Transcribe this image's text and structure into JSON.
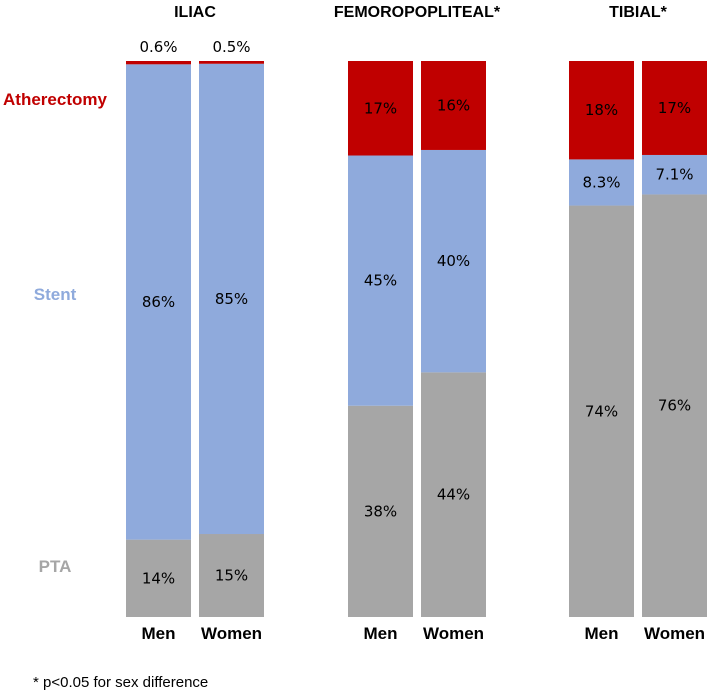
{
  "chart_data": {
    "type": "bar",
    "stacked": true,
    "normalized_percent": true,
    "legend": [
      {
        "name": "Atherectomy",
        "color": "#c00000"
      },
      {
        "name": "Stent",
        "color": "#8faadc"
      },
      {
        "name": "PTA",
        "color": "#a6a6a6"
      }
    ],
    "panels": [
      {
        "title": "ILIAC",
        "categories": [
          "Men",
          "Women"
        ],
        "series": [
          {
            "name": "PTA",
            "values": [
              14,
              15
            ],
            "labels": [
              "14%",
              "15%"
            ]
          },
          {
            "name": "Stent",
            "values": [
              86,
              85
            ],
            "labels": [
              "86%",
              "85%"
            ]
          },
          {
            "name": "Atherectomy",
            "values": [
              0.6,
              0.5
            ],
            "labels": [
              "0.6%",
              "0.5%"
            ]
          }
        ]
      },
      {
        "title": "FEMOROPOPLITEAL*",
        "categories": [
          "Men",
          "Women"
        ],
        "series": [
          {
            "name": "PTA",
            "values": [
              38,
              44
            ],
            "labels": [
              "38%",
              "44%"
            ]
          },
          {
            "name": "Stent",
            "values": [
              45,
              40
            ],
            "labels": [
              "45%",
              "40%"
            ]
          },
          {
            "name": "Atherectomy",
            "values": [
              17,
              16
            ],
            "labels": [
              "17%",
              "16%"
            ]
          }
        ]
      },
      {
        "title": "TIBIAL*",
        "categories": [
          "Men",
          "Women"
        ],
        "series": [
          {
            "name": "PTA",
            "values": [
              74,
              76
            ],
            "labels": [
              "74%",
              "76%"
            ]
          },
          {
            "name": "Stent",
            "values": [
              8.3,
              7.1
            ],
            "labels": [
              "8.3%",
              "7.1%"
            ]
          },
          {
            "name": "Atherectomy",
            "values": [
              17.7,
              16.9
            ],
            "labels": [
              "18%",
              "17%"
            ]
          }
        ]
      }
    ]
  },
  "footnote": "* p<0.05 for sex difference"
}
